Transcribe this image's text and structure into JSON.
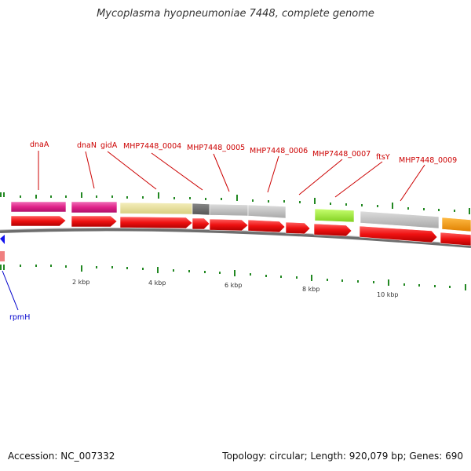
{
  "title": "Mycoplasma hyopneumoniae 7448, complete genome",
  "footer": {
    "accession": "Accession: NC_007332",
    "summary": "Topology: circular; Length: 920,079 bp; Genes: 690"
  },
  "scale": {
    "ticks": [
      "2 kbp",
      "4 kbp",
      "6 kbp",
      "8 kbp",
      "10 kbp"
    ]
  },
  "genes": [
    {
      "name": "dnaA",
      "color": "#cc0000"
    },
    {
      "name": "dnaN",
      "color": "#cc0000"
    },
    {
      "name": "gidA",
      "color": "#cc0000"
    },
    {
      "name": "MHP7448_0004",
      "color": "#cc0000"
    },
    {
      "name": "MHP7448_0005",
      "color": "#cc0000"
    },
    {
      "name": "MHP7448_0006",
      "color": "#cc0000"
    },
    {
      "name": "MHP7448_0007",
      "color": "#cc0000"
    },
    {
      "name": "ftsY",
      "color": "#cc0000"
    },
    {
      "name": "MHP7448_0009",
      "color": "#cc0000"
    },
    {
      "name": "rpmH",
      "color": "#0000cc"
    }
  ],
  "colors": {
    "cds_forward": "#ee1111",
    "cog_pink": "#e0238a",
    "cog_yellow": "#e8e09a",
    "cog_gray": "#bbbbbb",
    "cog_dark": "#666666",
    "cog_green": "#99ee33",
    "cog_orange": "#ff9900",
    "tick_green": "#228822",
    "backbone": "#777777"
  }
}
